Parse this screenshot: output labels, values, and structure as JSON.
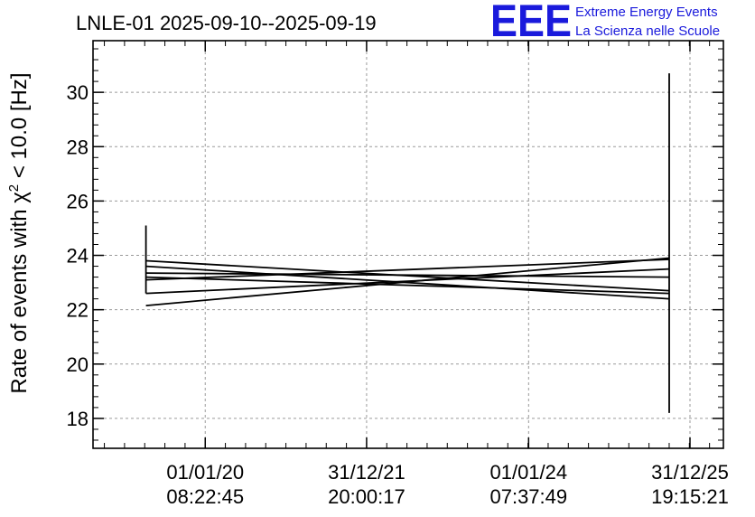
{
  "header": {
    "title": "LNLE-01 2025-09-10--2025-09-19",
    "logo_text": "EEE",
    "logo_line1": "Extreme Energy Events",
    "logo_line2": "La Scienza nelle Scuole",
    "logo_color": "#1a1adc"
  },
  "chart_data": {
    "type": "line",
    "title": "LNLE-01 2025-09-10--2025-09-19",
    "ylabel_prefix": "Rate of events with ",
    "ylabel_chi": "χ",
    "ylabel_sup": "2",
    "ylabel_suffix": " < 10.0 [Hz]",
    "xlabel": "",
    "ylim": [
      16.9,
      31.9
    ],
    "xlim": [
      0,
      1
    ],
    "y_ticks": [
      18,
      20,
      22,
      24,
      26,
      28,
      30
    ],
    "x_ticks": [
      {
        "pos": 0.178,
        "date": "01/01/20",
        "time": "08:22:45"
      },
      {
        "pos": 0.434,
        "date": "31/12/21",
        "time": "20:00:17"
      },
      {
        "pos": 0.691,
        "date": "01/01/24",
        "time": "07:37:49"
      },
      {
        "pos": 0.947,
        "date": "31/12/25",
        "time": "19:15:21"
      }
    ],
    "grid": true,
    "line_color": "#000000",
    "series": [
      {
        "x": [
          0.084,
          0.084
        ],
        "y": [
          22.6,
          25.1
        ]
      },
      {
        "x": [
          0.084,
          0.914
        ],
        "y": [
          22.15,
          23.9
        ]
      },
      {
        "x": [
          0.084,
          0.914
        ],
        "y": [
          22.6,
          23.5
        ]
      },
      {
        "x": [
          0.084,
          0.914
        ],
        "y": [
          23.1,
          23.85
        ]
      },
      {
        "x": [
          0.084,
          0.914
        ],
        "y": [
          23.35,
          23.2
        ]
      },
      {
        "x": [
          0.084,
          0.914
        ],
        "y": [
          23.2,
          22.6
        ]
      },
      {
        "x": [
          0.084,
          0.914
        ],
        "y": [
          23.6,
          22.4
        ]
      },
      {
        "x": [
          0.084,
          0.914
        ],
        "y": [
          23.8,
          22.7
        ]
      },
      {
        "x": [
          0.914,
          0.914
        ],
        "y": [
          18.2,
          30.7
        ]
      }
    ]
  }
}
